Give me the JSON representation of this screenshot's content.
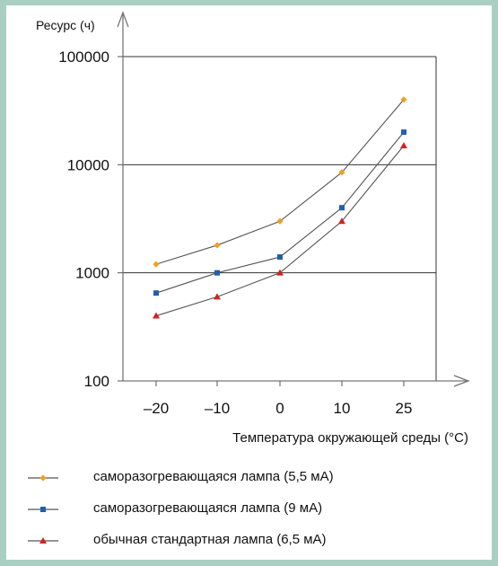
{
  "chart_data": {
    "type": "line",
    "ylabel": "Ресурс (ч)",
    "xlabel": "Температура окружающей среды (°С)",
    "x": [
      -20,
      -10,
      0,
      10,
      25
    ],
    "x_tick_labels": [
      "–20",
      "–10",
      "0",
      "10",
      "25"
    ],
    "y_scale": "log",
    "ylim": [
      100,
      100000
    ],
    "y_ticks": [
      100,
      1000,
      10000,
      100000
    ],
    "y_tick_labels": [
      "100",
      "1000",
      "10000",
      "100000"
    ],
    "grid": "horizontal at 1000 and 10000",
    "legend_position": "bottom",
    "series": [
      {
        "name": "саморазогревающаяся лампа (5,5 мА)",
        "marker": "diamond",
        "color": "#f0a020",
        "values": [
          1200,
          1800,
          3000,
          8500,
          40000
        ]
      },
      {
        "name": "саморазогревающаяся лампа (9 мА)",
        "marker": "square",
        "color": "#1f5fb0",
        "values": [
          650,
          1000,
          1400,
          4000,
          20000
        ]
      },
      {
        "name": "обычная стандартная лампа (6,5 мА)",
        "marker": "triangle",
        "color": "#d42020",
        "values": [
          400,
          600,
          1000,
          3000,
          15000
        ]
      }
    ]
  }
}
